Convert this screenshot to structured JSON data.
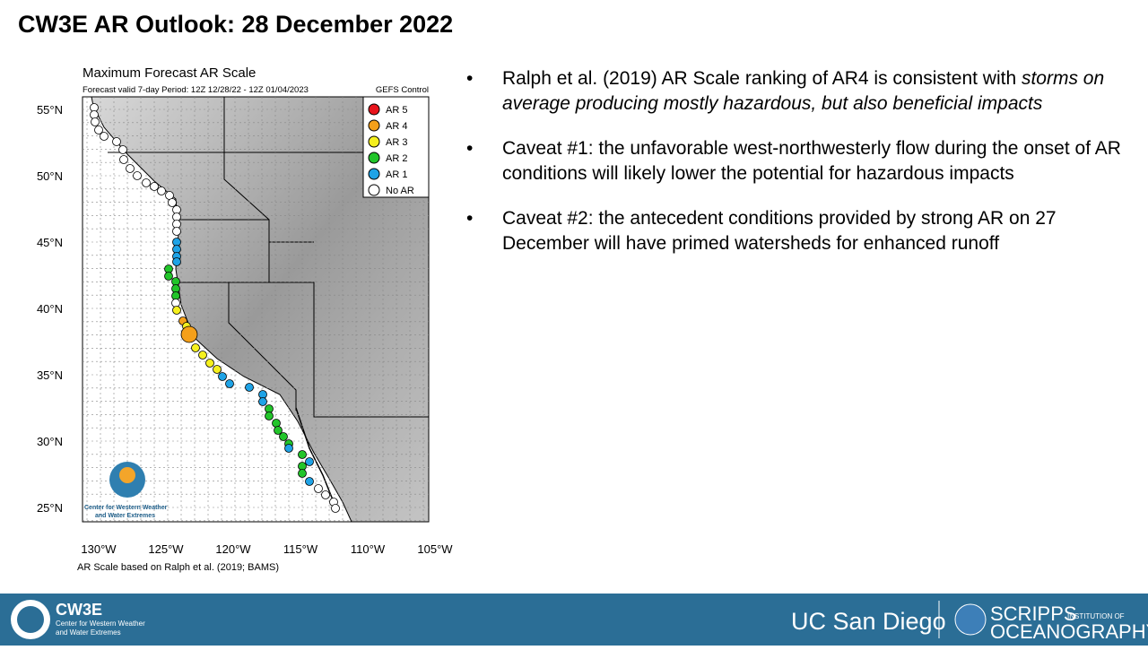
{
  "header": {
    "title": "CW3E AR Outlook: 28 December 2022"
  },
  "map": {
    "title": "Maximum Forecast AR Scale",
    "subtitle": "Forecast valid 7-day Period: 12Z 12/28/22 - 12Z 01/04/2023",
    "model": "GEFS Control",
    "legend": [
      "AR 5",
      "AR 4",
      "AR 3",
      "AR 2",
      "AR 1",
      "No AR"
    ],
    "lat_labels": [
      "55°N",
      "50°N",
      "45°N",
      "40°N",
      "35°N",
      "30°N",
      "25°N"
    ],
    "lon_labels": [
      "130°W",
      "125°W",
      "120°W",
      "115°W",
      "110°W",
      "105°W"
    ],
    "caption": "AR Scale based on Ralph et al. (2019; BAMS)",
    "logo_text": [
      "Center for Western Weather",
      "and Water Extremes"
    ]
  },
  "bullets": [
    {
      "text": "Ralph et al. (2019) AR Scale ranking of AR4 is consistent with ",
      "italic": "storms on average producing mostly hazardous, but also beneficial impacts"
    },
    {
      "text": "Caveat #1: the unfavorable west-northwesterly flow during the onset of AR conditions will likely lower the potential for hazardous impacts"
    },
    {
      "text": "Caveat #2: the antecedent conditions provided by strong AR on 27 December will have primed watersheds for enhanced runoff"
    }
  ],
  "footer": {
    "logo": "CW3E",
    "logo_sub": [
      "Center for Western Weather",
      "and Water Extremes"
    ],
    "ucsd": "UC San Diego",
    "scripps": "SCRIPPS",
    "scripps_sub": "INSTITUTION OF",
    "scripps_main": "OCEANOGRAPHY"
  }
}
